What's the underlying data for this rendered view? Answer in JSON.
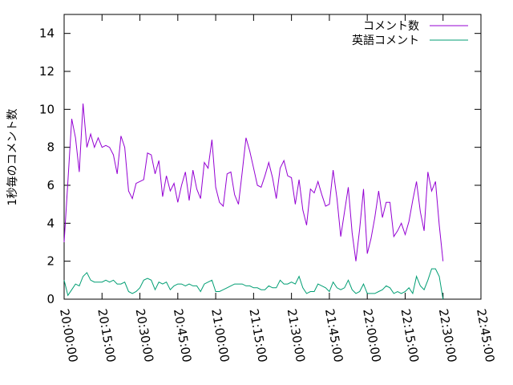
{
  "chart_data": {
    "type": "line",
    "title": "",
    "xlabel": "",
    "ylabel": "1秒毎のコメント数",
    "xlim": [
      "20:00:00",
      "22:45:00"
    ],
    "ylim": [
      0,
      15
    ],
    "xticks": [
      "20:00:00",
      "20:15:00",
      "20:30:00",
      "20:45:00",
      "21:00:00",
      "21:15:00",
      "21:30:00",
      "21:45:00",
      "22:00:00",
      "22:15:00",
      "22:30:00",
      "22:45:00"
    ],
    "yticks": [
      "0",
      "2",
      "4",
      "6",
      "8",
      "10",
      "12",
      "14"
    ],
    "legend_position": "top-right",
    "grid": false,
    "x_step_minutes": 1.5,
    "series": [
      {
        "name": "コメント数",
        "color": "#9400d3",
        "values": [
          3.0,
          6.2,
          9.5,
          8.5,
          6.7,
          10.3,
          8.0,
          8.7,
          8.0,
          8.5,
          8.0,
          8.1,
          8.0,
          7.6,
          6.6,
          8.6,
          8.0,
          5.7,
          5.3,
          6.1,
          6.2,
          6.3,
          7.7,
          7.6,
          6.6,
          7.3,
          5.4,
          6.5,
          5.7,
          6.1,
          5.1,
          6.0,
          6.7,
          5.2,
          6.8,
          5.8,
          5.3,
          7.2,
          6.9,
          8.4,
          5.9,
          5.1,
          4.9,
          6.6,
          6.7,
          5.5,
          5.0,
          6.7,
          8.5,
          7.8,
          6.9,
          6.0,
          5.9,
          6.5,
          7.2,
          6.4,
          5.3,
          6.9,
          7.3,
          6.5,
          6.4,
          5.0,
          6.3,
          4.7,
          3.9,
          5.8,
          5.6,
          6.2,
          5.5,
          4.9,
          5.0,
          6.8,
          5.3,
          3.3,
          4.6,
          5.9,
          3.5,
          2.0,
          3.7,
          5.8,
          2.4,
          3.2,
          4.3,
          5.7,
          4.3,
          5.1,
          5.1,
          3.3,
          3.6,
          4.0,
          3.4,
          4.1,
          5.2,
          6.2,
          4.6,
          3.6,
          6.7,
          5.7,
          6.2,
          3.9,
          2.0
        ]
      },
      {
        "name": "英語コメント",
        "color": "#009e73",
        "values": [
          1.0,
          0.2,
          0.5,
          0.8,
          0.7,
          1.2,
          1.4,
          1.0,
          0.9,
          0.9,
          0.9,
          1.0,
          0.9,
          1.0,
          0.8,
          0.8,
          0.9,
          0.4,
          0.3,
          0.4,
          0.6,
          1.0,
          1.1,
          1.0,
          0.5,
          0.9,
          0.8,
          0.9,
          0.5,
          0.7,
          0.8,
          0.8,
          0.7,
          0.8,
          0.7,
          0.7,
          0.4,
          0.8,
          0.9,
          1.0,
          0.4,
          0.4,
          0.5,
          0.6,
          0.7,
          0.8,
          0.8,
          0.8,
          0.7,
          0.7,
          0.6,
          0.6,
          0.5,
          0.5,
          0.7,
          0.6,
          0.6,
          1.0,
          0.8,
          0.8,
          0.9,
          0.8,
          1.2,
          0.6,
          0.3,
          0.4,
          0.4,
          0.8,
          0.7,
          0.6,
          0.4,
          0.9,
          0.6,
          0.5,
          0.6,
          1.0,
          0.5,
          0.3,
          0.4,
          0.8,
          0.3,
          0.3,
          0.3,
          0.4,
          0.5,
          0.7,
          0.6,
          0.3,
          0.4,
          0.3,
          0.4,
          0.6,
          0.3,
          1.2,
          0.7,
          0.5,
          1.0,
          1.6,
          1.6,
          1.2,
          0.0
        ]
      }
    ]
  }
}
